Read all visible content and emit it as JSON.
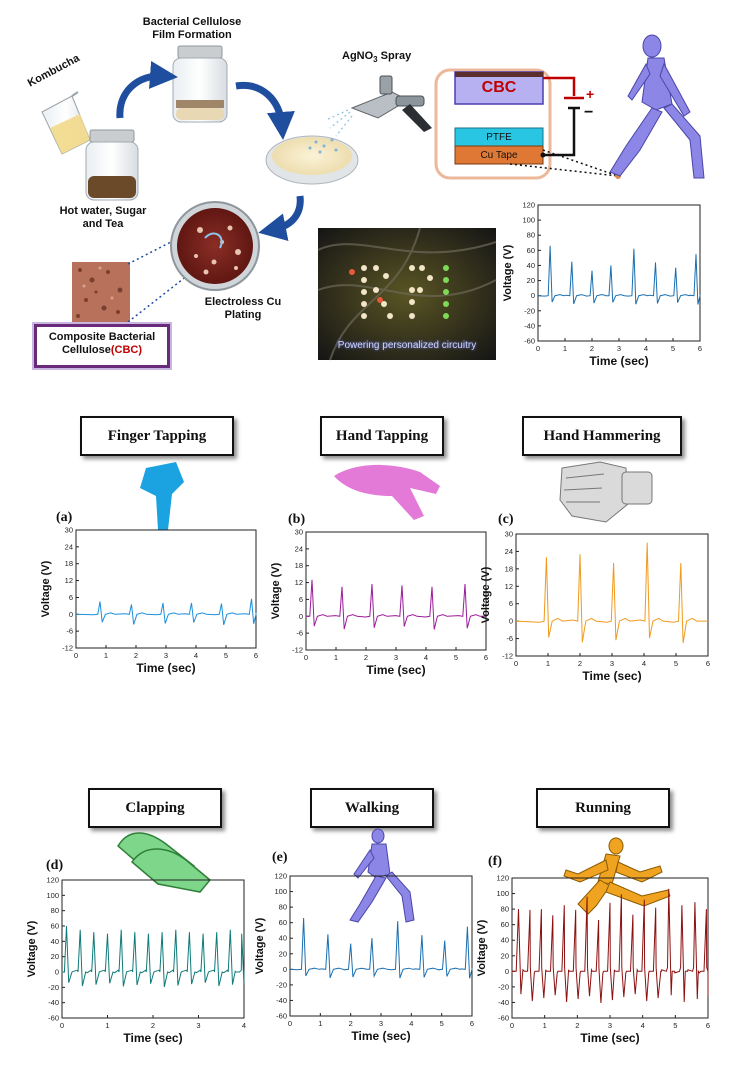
{
  "process": {
    "kombucha": "Kombucha",
    "film_formation": "Bacterial Cellulose\nFilm Formation",
    "agno3_prefix": "AgNO",
    "agno3_sub": "3",
    "agno3_suffix": " Spray",
    "hot_water": "Hot water, Sugar\nand Tea",
    "cu_plating": "Electroless Cu\nPlating",
    "cbc_label_main": "Composite Bacterial\nCellulose",
    "cbc_label_red": "(CBC)"
  },
  "device": {
    "cbc": "CBC",
    "ptfe": "PTFE",
    "cu_tape": "Cu Tape",
    "plus": "+",
    "minus": "−"
  },
  "led_caption": "Powering personalized circuitry",
  "colors": {
    "finger": "#1b8fdc",
    "hand_tap": "#9b1b9b",
    "hammer": "#f09a1e",
    "clap": "#0f7a7a",
    "walk": "#1b6fb0",
    "run": "#8b1010",
    "cbc_red": "#c00000",
    "figure_purple": "#8c86e6"
  },
  "motions": {
    "finger": "Finger Tapping",
    "hand_tap": "Hand Tapping",
    "hammer": "Hand Hammering",
    "clap": "Clapping",
    "walk": "Walking",
    "run": "Running"
  },
  "chart_data": [
    {
      "id": "top",
      "type": "line",
      "xlabel": "Time (sec)",
      "ylabel": "Voltage (V)",
      "xlim": [
        0,
        6
      ],
      "ylim": [
        -60,
        120
      ],
      "xticks": [
        "0",
        "1",
        "2",
        "3",
        "4",
        "5",
        "6"
      ],
      "yticks": [
        "-60",
        "-40",
        "-20",
        "0",
        "20",
        "40",
        "60",
        "80",
        "100",
        "120"
      ],
      "peaks": [
        {
          "t": 0.45,
          "v": 66
        },
        {
          "t": 1.25,
          "v": 45
        },
        {
          "t": 2.0,
          "v": 33
        },
        {
          "t": 2.7,
          "v": 40
        },
        {
          "t": 3.55,
          "v": 62
        },
        {
          "t": 4.35,
          "v": 44
        },
        {
          "t": 5.1,
          "v": 37
        },
        {
          "t": 5.85,
          "v": 55
        }
      ],
      "trough": -12,
      "color_key": "walk"
    },
    {
      "id": "a",
      "panel": "(a)",
      "type": "line",
      "xlabel": "Time (sec)",
      "ylabel": "Voltage (V)",
      "xlim": [
        0,
        6
      ],
      "ylim": [
        -12,
        30
      ],
      "xticks": [
        "0",
        "1",
        "2",
        "3",
        "4",
        "5",
        "6"
      ],
      "yticks": [
        "-12",
        "-6",
        "0",
        "6",
        "12",
        "18",
        "24",
        "30"
      ],
      "peaks": [
        {
          "t": 0.8,
          "v": 4.5
        },
        {
          "t": 1.85,
          "v": 3.5
        },
        {
          "t": 2.9,
          "v": 4.0
        },
        {
          "t": 3.85,
          "v": 4.0
        },
        {
          "t": 4.85,
          "v": 3.8
        },
        {
          "t": 5.85,
          "v": 5.5
        }
      ],
      "trough": -4,
      "color_key": "finger"
    },
    {
      "id": "b",
      "panel": "(b)",
      "type": "line",
      "xlabel": "Time (sec)",
      "ylabel": "Voltage (V)",
      "xlim": [
        0,
        6
      ],
      "ylim": [
        -12,
        30
      ],
      "xticks": [
        "0",
        "1",
        "2",
        "3",
        "4",
        "5",
        "6"
      ],
      "yticks": [
        "-12",
        "-6",
        "0",
        "6",
        "12",
        "18",
        "24",
        "30"
      ],
      "peaks": [
        {
          "t": 0.2,
          "v": 13
        },
        {
          "t": 1.2,
          "v": 10.5
        },
        {
          "t": 2.2,
          "v": 11.5
        },
        {
          "t": 3.2,
          "v": 11
        },
        {
          "t": 4.2,
          "v": 10.5
        },
        {
          "t": 5.3,
          "v": 11.5
        }
      ],
      "trough": -5,
      "color_key": "hand_tap"
    },
    {
      "id": "c",
      "panel": "(c)",
      "type": "line",
      "xlabel": "Time (sec)",
      "ylabel": "Voltage (V)",
      "xlim": [
        0,
        6
      ],
      "ylim": [
        -12,
        30
      ],
      "xticks": [
        "0",
        "1",
        "2",
        "3",
        "4",
        "5",
        "6"
      ],
      "yticks": [
        "-12",
        "-6",
        "0",
        "6",
        "12",
        "18",
        "24",
        "30"
      ],
      "peaks": [
        {
          "t": 0.95,
          "v": 22
        },
        {
          "t": 2.0,
          "v": 23
        },
        {
          "t": 3.05,
          "v": 20
        },
        {
          "t": 4.1,
          "v": 27
        },
        {
          "t": 5.15,
          "v": 20
        }
      ],
      "trough": -8,
      "color_key": "hammer"
    },
    {
      "id": "d",
      "panel": "(d)",
      "type": "line",
      "xlabel": "Time (sec)",
      "ylabel": "Voltage (V)",
      "xlim": [
        0,
        4
      ],
      "ylim": [
        -60,
        120
      ],
      "xticks": [
        "0",
        "1",
        "2",
        "3",
        "4"
      ],
      "yticks": [
        "-60",
        "-40",
        "-20",
        "0",
        "20",
        "40",
        "60",
        "80",
        "100",
        "120"
      ],
      "peaks": [
        {
          "t": 0.1,
          "v": 60
        },
        {
          "t": 0.4,
          "v": 55
        },
        {
          "t": 0.7,
          "v": 52
        },
        {
          "t": 1.0,
          "v": 50
        },
        {
          "t": 1.3,
          "v": 55
        },
        {
          "t": 1.6,
          "v": 52
        },
        {
          "t": 1.9,
          "v": 50
        },
        {
          "t": 2.2,
          "v": 52
        },
        {
          "t": 2.5,
          "v": 55
        },
        {
          "t": 2.8,
          "v": 52
        },
        {
          "t": 3.1,
          "v": 50
        },
        {
          "t": 3.4,
          "v": 52
        },
        {
          "t": 3.7,
          "v": 55
        },
        {
          "t": 3.95,
          "v": 50
        }
      ],
      "trough": -20,
      "color_key": "clap"
    },
    {
      "id": "e",
      "panel": "(e)",
      "type": "line",
      "xlabel": "Time (sec)",
      "ylabel": "Voltage (V)",
      "xlim": [
        0,
        6
      ],
      "ylim": [
        -60,
        120
      ],
      "xticks": [
        "0",
        "1",
        "2",
        "3",
        "4",
        "5",
        "6"
      ],
      "yticks": [
        "-60",
        "-40",
        "-20",
        "0",
        "20",
        "40",
        "60",
        "80",
        "100",
        "120"
      ],
      "peaks": [
        {
          "t": 0.45,
          "v": 66
        },
        {
          "t": 1.25,
          "v": 45
        },
        {
          "t": 2.0,
          "v": 33
        },
        {
          "t": 2.7,
          "v": 40
        },
        {
          "t": 3.55,
          "v": 62
        },
        {
          "t": 4.35,
          "v": 44
        },
        {
          "t": 5.1,
          "v": 37
        },
        {
          "t": 5.85,
          "v": 55
        }
      ],
      "trough": -12,
      "color_key": "walk"
    },
    {
      "id": "f",
      "panel": "(f)",
      "type": "line",
      "xlabel": "Time (sec)",
      "ylabel": "Voltage (V)",
      "xlim": [
        0,
        6
      ],
      "ylim": [
        -60,
        120
      ],
      "xticks": [
        "0",
        "1",
        "2",
        "3",
        "4",
        "5",
        "6"
      ],
      "yticks": [
        "-60",
        "-40",
        "-20",
        "0",
        "20",
        "40",
        "60",
        "80",
        "100",
        "120"
      ],
      "peaks": [
        {
          "t": 0.2,
          "v": 80
        },
        {
          "t": 0.55,
          "v": 79
        },
        {
          "t": 0.9,
          "v": 80
        },
        {
          "t": 1.25,
          "v": 72
        },
        {
          "t": 1.6,
          "v": 85
        },
        {
          "t": 1.95,
          "v": 79
        },
        {
          "t": 2.3,
          "v": 96
        },
        {
          "t": 2.65,
          "v": 66
        },
        {
          "t": 3.0,
          "v": 88
        },
        {
          "t": 3.35,
          "v": 99
        },
        {
          "t": 3.7,
          "v": 73
        },
        {
          "t": 4.05,
          "v": 92
        },
        {
          "t": 4.4,
          "v": 82
        },
        {
          "t": 4.8,
          "v": 106
        },
        {
          "t": 5.2,
          "v": 85
        },
        {
          "t": 5.6,
          "v": 89
        },
        {
          "t": 5.95,
          "v": 80
        }
      ],
      "trough": -42,
      "color_key": "run"
    }
  ]
}
